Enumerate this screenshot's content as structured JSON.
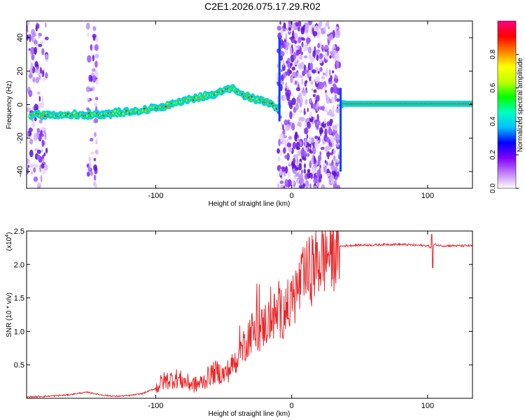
{
  "title": "C2E1.2026.075.17.29.R02",
  "chart_data": [
    {
      "type": "heatmap",
      "xlabel": "Height of straight line (km)",
      "ylabel": "Frequency (Hz)",
      "xlim": [
        -195,
        133
      ],
      "ylim": [
        -50,
        50
      ],
      "xticks": [
        -100,
        0,
        100
      ],
      "yticks": [
        -40,
        -20,
        0,
        20,
        40
      ],
      "colorbar": {
        "label": "Normalized spectral amplitude",
        "range": [
          0,
          1
        ],
        "ticks": [
          "0.0",
          "0.2",
          "0.4",
          "0.6",
          "0.8"
        ],
        "colors": [
          "#ffffff",
          "#c080ff",
          "#8000ff",
          "#0000ff",
          "#00c0ff",
          "#00ffc0",
          "#00ff00",
          "#c0ff00",
          "#ffff00",
          "#ff8000",
          "#ff0000",
          "#ff0080"
        ]
      },
      "ridge": {
        "x": [
          -195,
          -175,
          -160,
          -145,
          -130,
          -115,
          -100,
          -85,
          -70,
          -60,
          -50,
          -44,
          -40,
          -35,
          -30,
          -25,
          -20,
          -15,
          -12,
          -10,
          37,
          40,
          45,
          60,
          80,
          100,
          120,
          133
        ],
        "freq": [
          -6,
          -6,
          -6,
          -6,
          -5,
          -4,
          -2,
          1,
          4,
          6,
          8,
          10,
          7,
          6,
          4,
          3,
          2,
          1,
          -1,
          -2,
          1,
          0.5,
          0.5,
          0.5,
          0.5,
          0.5,
          0.5,
          0.5
        ]
      },
      "noise_regions_km": [
        [
          -195,
          -180
        ],
        [
          -150,
          -143
        ],
        [
          -10,
          35
        ]
      ]
    },
    {
      "type": "line",
      "xlabel": "Height of straight line (km)",
      "ylabel": "SNR (10 * v/v)",
      "y_exponent": "(x10",
      "y_exponent_power": "4",
      "xlim": [
        -195,
        133
      ],
      "ylim": [
        0,
        2.5
      ],
      "xticks": [
        -100,
        0,
        100
      ],
      "yticks": [
        "0.5",
        "1.0",
        "1.5",
        "2.0",
        "2.5"
      ],
      "series": [
        {
          "name": "SNR",
          "color": "#e8282a",
          "x": [
            -195,
            -180,
            -165,
            -155,
            -150,
            -140,
            -130,
            -120,
            -110,
            -100,
            -95,
            -90,
            -85,
            -80,
            -75,
            -70,
            -65,
            -60,
            -55,
            -50,
            -45,
            -40,
            -35,
            -30,
            -25,
            -20,
            -15,
            -10,
            -5,
            0,
            5,
            10,
            15,
            20,
            25,
            30,
            35,
            40,
            50,
            60,
            70,
            80,
            90,
            100,
            103,
            105,
            110,
            120,
            133
          ],
          "y": [
            0.02,
            0.03,
            0.05,
            0.08,
            0.09,
            0.05,
            0.03,
            0.04,
            0.07,
            0.15,
            0.25,
            0.28,
            0.3,
            0.26,
            0.22,
            0.2,
            0.25,
            0.35,
            0.4,
            0.35,
            0.45,
            0.6,
            0.8,
            1.0,
            0.95,
            1.1,
            1.2,
            1.25,
            1.3,
            1.45,
            1.65,
            1.8,
            1.95,
            2.05,
            2.15,
            2.22,
            2.27,
            2.28,
            2.29,
            2.29,
            2.3,
            2.3,
            2.29,
            2.28,
            2.25,
            2.3,
            2.28,
            2.28,
            2.28
          ]
        }
      ]
    }
  ]
}
